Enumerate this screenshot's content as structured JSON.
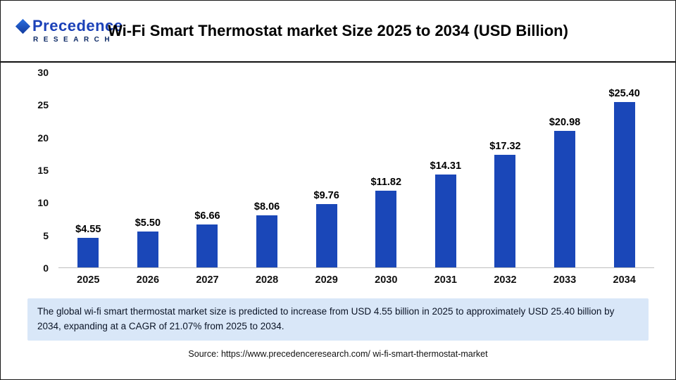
{
  "header": {
    "logo_line1": "Precedence",
    "logo_line2": "RESEARCH",
    "title": "Wi-Fi Smart Thermostat market Size 2025 to 2034 (USD Billion)"
  },
  "chart_data": {
    "type": "bar",
    "title": "Wi-Fi Smart Thermostat market Size 2025 to 2034 (USD Billion)",
    "categories": [
      "2025",
      "2026",
      "2027",
      "2028",
      "2029",
      "2030",
      "2031",
      "2032",
      "2033",
      "2034"
    ],
    "values": [
      4.55,
      5.5,
      6.66,
      8.06,
      9.76,
      11.82,
      14.31,
      17.32,
      20.98,
      25.4
    ],
    "value_labels": [
      "$4.55",
      "$5.50",
      "$6.66",
      "$8.06",
      "$9.76",
      "$11.82",
      "$14.31",
      "$17.32",
      "$20.98",
      "$25.40"
    ],
    "ylim": [
      0,
      30
    ],
    "yticks": [
      0,
      5,
      10,
      15,
      20,
      25,
      30
    ],
    "bar_color": "#1a47b8",
    "grid": false,
    "legend": "none",
    "xlabel": "",
    "ylabel": ""
  },
  "note": {
    "text": "The global wi-fi smart thermostat market size is predicted to increase from USD 4.55 billion in 2025 to approximately USD 25.40 billion by 2034, expanding at a CAGR of 21.07% from 2025 to 2034."
  },
  "source": {
    "text": "Source: https://www.precedenceresearch.com/ wi-fi-smart-thermostat-market"
  }
}
